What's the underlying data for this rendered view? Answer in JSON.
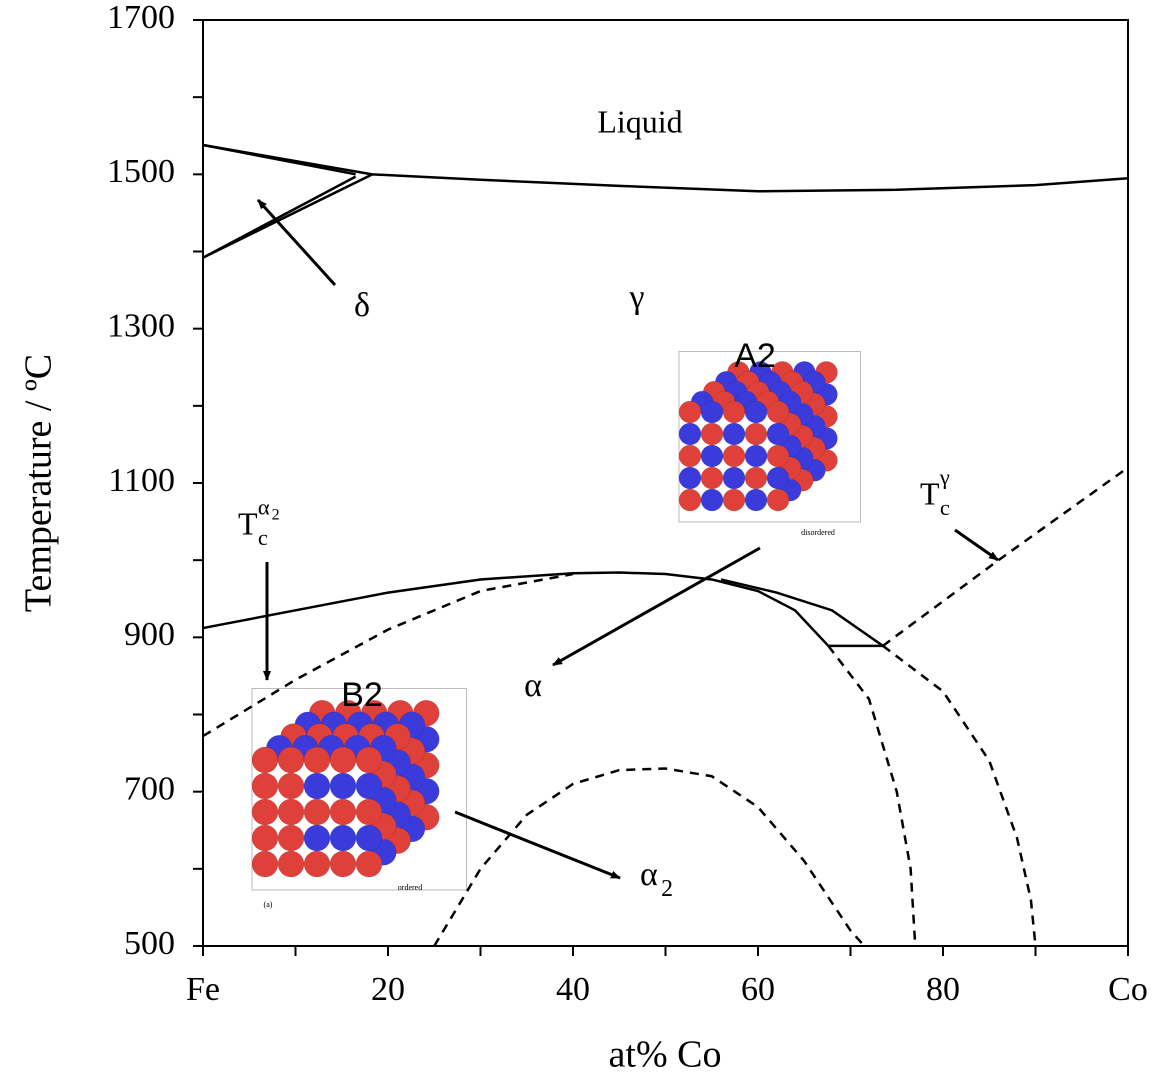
{
  "chart_data": {
    "type": "line",
    "x_label": "at% Co",
    "y_label": "Temperature / ºC",
    "xlim": [
      0,
      100
    ],
    "ylim": [
      500,
      1700
    ],
    "xticks": [
      {
        "value": 0,
        "label": "Fe"
      },
      20,
      40,
      60,
      80,
      {
        "value": 100,
        "label": "Co"
      }
    ],
    "xminor": [
      10,
      30,
      50,
      70,
      90
    ],
    "yticks": [
      500,
      700,
      900,
      1100,
      1300,
      1500,
      1700
    ],
    "yminor": [
      600,
      800,
      1000,
      1200,
      1400,
      1600
    ],
    "series": [
      {
        "color": "#000000",
        "dash": false,
        "x": [
          0,
          18.3,
          30,
          45,
          60,
          75,
          90,
          100
        ],
        "values": [
          1538,
          1500,
          1493,
          1485,
          1478,
          1480,
          1486,
          1495
        ]
      },
      {
        "color": "#000000",
        "dash": false,
        "x": [
          0,
          16.5
        ],
        "values": [
          1538,
          1500
        ]
      },
      {
        "color": "#000000",
        "dash": false,
        "x": [
          0,
          18.3
        ],
        "values": [
          1392,
          1500
        ]
      },
      {
        "color": "#000000",
        "dash": false,
        "x": [
          0,
          16.5
        ],
        "values": [
          1392,
          1497
        ]
      },
      {
        "color": "#000000",
        "dash": false,
        "x": [
          0,
          10,
          20,
          30,
          40,
          45,
          50,
          55,
          60,
          64,
          67.6
        ],
        "values": [
          912,
          935,
          958,
          975,
          983,
          984,
          982,
          975,
          960,
          935,
          889
        ]
      },
      {
        "color": "#000000",
        "dash": false,
        "x": [
          56,
          62,
          68,
          73.5
        ],
        "values": [
          975,
          958,
          935,
          889
        ]
      },
      {
        "color": "#000000",
        "dash": false,
        "x": [
          67.6,
          73.5
        ],
        "values": [
          889,
          889
        ]
      },
      {
        "color": "#000000",
        "dash": true,
        "x": [
          0,
          10,
          20,
          30,
          40
        ],
        "values": [
          772,
          845,
          910,
          960,
          982
        ]
      },
      {
        "color": "#000000",
        "dash": true,
        "x": [
          73.5,
          86,
          100
        ],
        "values": [
          889,
          1000,
          1120
        ]
      },
      {
        "color": "#000000",
        "dash": true,
        "x": [
          25,
          30,
          35,
          40,
          45,
          50,
          55,
          60,
          65,
          70,
          71.5
        ],
        "values": [
          500,
          600,
          670,
          710,
          728,
          730,
          720,
          680,
          610,
          520,
          500
        ]
      },
      {
        "color": "#000000",
        "dash": true,
        "x": [
          67.6,
          72,
          75,
          76.5,
          77
        ],
        "values": [
          889,
          820,
          700,
          600,
          500
        ]
      },
      {
        "color": "#000000",
        "dash": true,
        "x": [
          73.5,
          80,
          85,
          88,
          89.5,
          90
        ],
        "values": [
          889,
          830,
          740,
          640,
          560,
          500
        ]
      }
    ],
    "annotations": [
      {
        "text": "Liquid"
      },
      {
        "text": "δ"
      },
      {
        "text": "γ"
      },
      {
        "text": "α"
      },
      {
        "text": "α",
        "sub": "2"
      },
      {
        "text": "T",
        "sub": "c",
        "sup": "α",
        "sup_sub": "2"
      },
      {
        "text": "T",
        "sub": "c",
        "sup": "γ"
      },
      {
        "text": "A2"
      },
      {
        "text": "B2"
      },
      {
        "text": "disordered"
      },
      {
        "text": "ordered"
      },
      {
        "text": "(a)"
      }
    ]
  }
}
